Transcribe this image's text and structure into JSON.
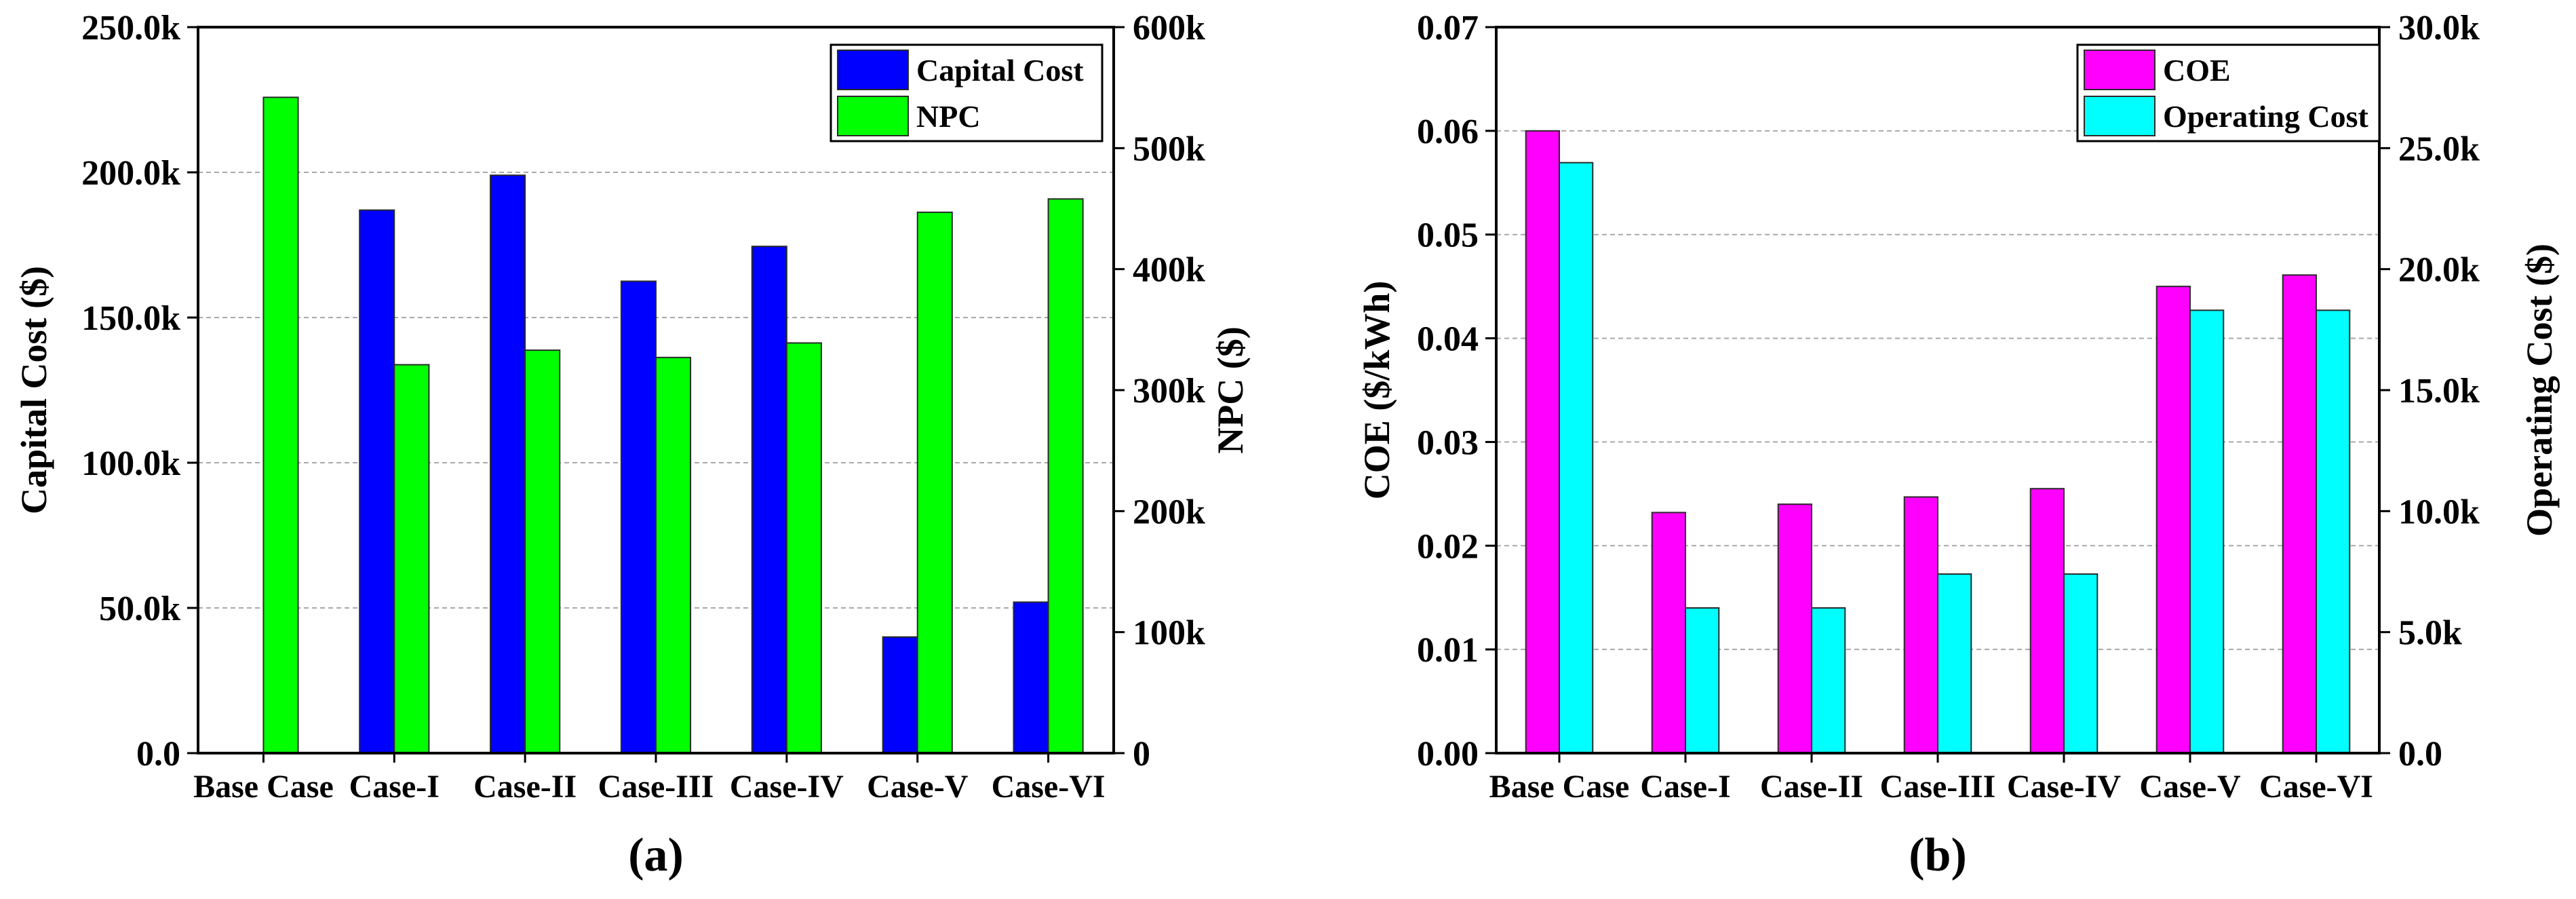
{
  "chart_data": [
    {
      "type": "bar",
      "panel_label": "(a)",
      "categories": [
        "Base Case",
        "Case-I",
        "Case-II",
        "Case-III",
        "Case-IV",
        "Case-V",
        "Case-VI"
      ],
      "ylabel": "Capital Cost ($)",
      "ylabel_right": "NPC ($)",
      "ylim": [
        0,
        250000
      ],
      "ylim_right": [
        0,
        600000
      ],
      "yticks": [
        0,
        50000,
        100000,
        150000,
        200000,
        250000
      ],
      "ytick_labels": [
        "0.0",
        "50.0k",
        "100.0k",
        "150.0k",
        "200.0k",
        "250.0k"
      ],
      "yticks_right": [
        0,
        100000,
        200000,
        300000,
        400000,
        500000,
        600000
      ],
      "ytick_labels_right": [
        "0",
        "100k",
        "200k",
        "300k",
        "400k",
        "500k",
        "600k"
      ],
      "grid": true,
      "legend_position": "top-right",
      "series": [
        {
          "name": "Capital Cost",
          "axis": "left",
          "color": "#0000ff",
          "values": [
            0,
            187000,
            199000,
            162500,
            174500,
            40000,
            52000
          ]
        },
        {
          "name": "NPC",
          "axis": "right",
          "color": "#00ff00",
          "values": [
            542000,
            321000,
            333000,
            327000,
            339000,
            447000,
            458000
          ]
        }
      ]
    },
    {
      "type": "bar",
      "panel_label": "(b)",
      "categories": [
        "Base Case",
        "Case-I",
        "Case-II",
        "Case-III",
        "Case-IV",
        "Case-V",
        "Case-VI"
      ],
      "ylabel": "COE ($/kWh)",
      "ylabel_right": "Operating Cost ($)",
      "ylim": [
        0,
        0.07
      ],
      "ylim_right": [
        0,
        30000
      ],
      "yticks": [
        0,
        0.01,
        0.02,
        0.03,
        0.04,
        0.05,
        0.06,
        0.07
      ],
      "ytick_labels": [
        "0.00",
        "0.01",
        "0.02",
        "0.03",
        "0.04",
        "0.05",
        "0.06",
        "0.07"
      ],
      "yticks_right": [
        0,
        5000,
        10000,
        15000,
        20000,
        25000,
        30000
      ],
      "ytick_labels_right": [
        "0.0",
        "5.0k",
        "10.0k",
        "15.0k",
        "20.0k",
        "25.0k",
        "30.0k"
      ],
      "grid": true,
      "legend_position": "top-right",
      "series": [
        {
          "name": "COE",
          "axis": "left",
          "color": "#ff00ff",
          "values": [
            0.06,
            0.0232,
            0.024,
            0.0247,
            0.0255,
            0.045,
            0.0461
          ]
        },
        {
          "name": "Operating Cost",
          "axis": "right",
          "color": "#00ffff",
          "values": [
            24400,
            6000,
            6000,
            7400,
            7400,
            18300,
            18300
          ]
        }
      ]
    }
  ]
}
